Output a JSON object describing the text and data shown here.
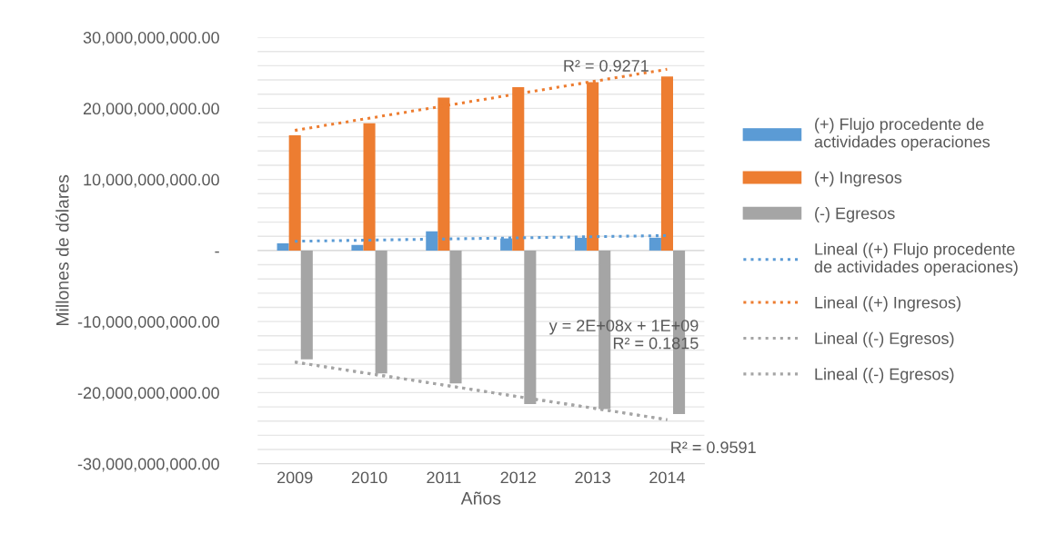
{
  "chart_data": {
    "type": "bar",
    "ylabel": "Millones de dólares",
    "xlabel": "Años",
    "categories": [
      "2009",
      "2010",
      "2011",
      "2012",
      "2013",
      "2014"
    ],
    "series": [
      {
        "name": "(+) Flujo procedente de actividades operaciones",
        "color": "#5b9bd5",
        "values": [
          1000000000.0,
          800000000.0,
          2700000000.0,
          1700000000.0,
          1800000000.0,
          1800000000.0
        ]
      },
      {
        "name": "(+) Ingresos",
        "color": "#ed7d31",
        "values": [
          16200000000.0,
          17900000000.0,
          21500000000.0,
          23000000000.0,
          23700000000.0,
          24500000000.0
        ]
      },
      {
        "name": "(-) Egresos",
        "color": "#a5a5a5",
        "values": [
          -15300000000.0,
          -17300000000.0,
          -18700000000.0,
          -21600000000.0,
          -22300000000.0,
          -23000000000.0
        ]
      },
      {
        "name": "Lineal ((+) Flujo procedente de actividades operaciones)",
        "type": "line",
        "line_style": "dotted",
        "color": "#5b9bd5",
        "values": [
          1300000000.0,
          null,
          null,
          null,
          null,
          2100000000.0
        ]
      },
      {
        "name": "Lineal ((+) Ingresos)",
        "type": "line",
        "line_style": "dotted",
        "color": "#ed7d31",
        "values": [
          16900000000.0,
          null,
          null,
          null,
          null,
          25500000000.0
        ]
      },
      {
        "name": "Lineal ((-) Egresos)",
        "type": "line",
        "line_style": "dotted",
        "color": "#a5a5a5",
        "values": [
          -15700000000.0,
          null,
          null,
          null,
          null,
          -23800000000.0
        ]
      },
      {
        "name": "Lineal ((-) Egresos)",
        "type": "line",
        "line_style": "dotted",
        "color": "#a5a5a5",
        "values": [
          -15700000000.0,
          null,
          null,
          null,
          null,
          -23800000000.0
        ]
      }
    ],
    "ylim": [
      -30000000000.0,
      30000000000.0
    ],
    "yticks": [
      {
        "value": -30000000000.0,
        "label": "-30,000,000,000.00"
      },
      {
        "value": -28000000000.0,
        "label": null
      },
      {
        "value": -26000000000.0,
        "label": null
      },
      {
        "value": -24000000000.0,
        "label": null
      },
      {
        "value": -22000000000.0,
        "label": null
      },
      {
        "value": -20000000000.0,
        "label": "-20,000,000,000.00"
      },
      {
        "value": -18000000000.0,
        "label": null
      },
      {
        "value": -16000000000.0,
        "label": null
      },
      {
        "value": -14000000000.0,
        "label": null
      },
      {
        "value": -12000000000.0,
        "label": null
      },
      {
        "value": -10000000000.0,
        "label": "-10,000,000,000.00"
      },
      {
        "value": -8000000000.0,
        "label": null
      },
      {
        "value": -6000000000.0,
        "label": null
      },
      {
        "value": -4000000000.0,
        "label": null
      },
      {
        "value": -2000000000.0,
        "label": null
      },
      {
        "value": 0,
        "label": "-"
      },
      {
        "value": 2000000000.0,
        "label": null
      },
      {
        "value": 4000000000.0,
        "label": null
      },
      {
        "value": 6000000000.0,
        "label": null
      },
      {
        "value": 8000000000.0,
        "label": null
      },
      {
        "value": 10000000000.0,
        "label": "10,000,000,000.00"
      },
      {
        "value": 12000000000.0,
        "label": null
      },
      {
        "value": 14000000000.0,
        "label": null
      },
      {
        "value": 16000000000.0,
        "label": null
      },
      {
        "value": 18000000000.0,
        "label": null
      },
      {
        "value": 20000000000.0,
        "label": "20,000,000,000.00"
      },
      {
        "value": 22000000000.0,
        "label": null
      },
      {
        "value": 24000000000.0,
        "label": null
      },
      {
        "value": 26000000000.0,
        "label": null
      },
      {
        "value": 28000000000.0,
        "label": null
      },
      {
        "value": 30000000000.0,
        "label": "30,000,000,000.00"
      }
    ],
    "grid": "y",
    "legend": "right",
    "annotations": [
      "R² = 0.9271",
      "y = 2E+08x + 1E+09\nR² = 0.1815",
      "R² = 0.9591"
    ]
  }
}
